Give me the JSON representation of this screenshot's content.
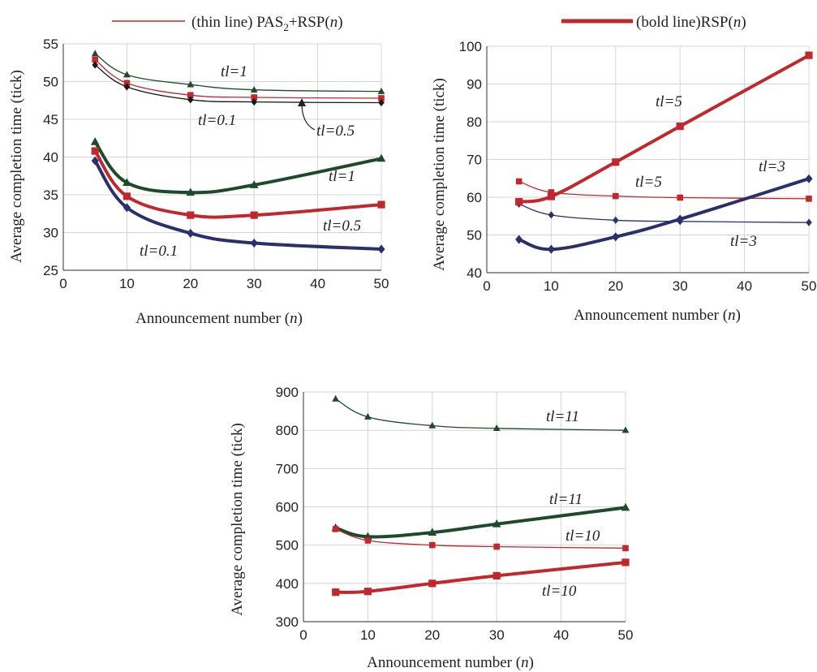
{
  "legend": [
    {
      "label": "(thin line) PAS",
      "sub": "2",
      "rest": "+RSP(",
      "arg": "n",
      "close": ")",
      "color": "#c0282d",
      "width": "thin"
    },
    {
      "label": "(bold line)RSP(",
      "arg": "n",
      "close": ")",
      "color": "#c0282d",
      "width": "bold"
    }
  ],
  "colors": {
    "red": "#c0282d",
    "green": "#1e4a2c",
    "navy": "#2b2f6a",
    "black": "#1a1a1a",
    "grid": "#d4d4d4"
  },
  "chart_data": [
    {
      "type": "line",
      "xlabel": "Announcement number",
      "xlabel_var": "n",
      "ylabel": "Average completion time (tick)",
      "xlim": [
        0,
        50
      ],
      "xticks": [
        0,
        10,
        20,
        30,
        40,
        50
      ],
      "ylim": [
        25,
        55
      ],
      "yticks": [
        25,
        30,
        35,
        40,
        45,
        50,
        55
      ],
      "grid": true,
      "series": [
        {
          "style": "thin",
          "color": "#1e4a2c",
          "marker": "triangle",
          "x": [
            5,
            10,
            20,
            30,
            50
          ],
          "y": [
            53.7,
            50.9,
            49.6,
            48.9,
            48.7
          ]
        },
        {
          "style": "thin",
          "color": "#c0282d",
          "marker": "square",
          "x": [
            5,
            10,
            20,
            30,
            50
          ],
          "y": [
            52.9,
            49.8,
            48.2,
            47.9,
            47.8
          ]
        },
        {
          "style": "thin",
          "color": "#1a1a1a",
          "marker": "diamond",
          "x": [
            5,
            10,
            20,
            30,
            50
          ],
          "y": [
            52.2,
            49.3,
            47.6,
            47.3,
            47.2
          ]
        },
        {
          "style": "bold",
          "color": "#1e4a2c",
          "marker": "triangle",
          "x": [
            5,
            10,
            20,
            30,
            50
          ],
          "y": [
            42.0,
            36.6,
            35.3,
            36.3,
            39.8
          ]
        },
        {
          "style": "bold",
          "color": "#c0282d",
          "marker": "square",
          "x": [
            5,
            10,
            20,
            30,
            50
          ],
          "y": [
            40.8,
            34.8,
            32.3,
            32.3,
            33.7
          ]
        },
        {
          "style": "bold",
          "color": "#2b2f6a",
          "marker": "diamond",
          "x": [
            5,
            10,
            20,
            30,
            50
          ],
          "y": [
            39.5,
            33.3,
            29.9,
            28.6,
            27.8
          ]
        }
      ],
      "annotations": [
        "tl=1",
        "tl=0.1",
        "tl=0.5",
        "tl=1",
        "tl=0.5",
        "tl=0.1"
      ]
    },
    {
      "type": "line",
      "xlabel": "Announcement number",
      "xlabel_var": "n",
      "ylabel": "Average completion time (tick)",
      "xlim": [
        0,
        50
      ],
      "xticks": [
        0,
        10,
        20,
        30,
        40,
        50
      ],
      "ylim": [
        40,
        100
      ],
      "yticks": [
        40,
        50,
        60,
        70,
        80,
        90,
        100
      ],
      "grid": true,
      "series": [
        {
          "style": "thin",
          "color": "#c0282d",
          "marker": "square",
          "x": [
            5,
            10,
            20,
            30,
            50
          ],
          "y": [
            64.2,
            61.3,
            60.3,
            59.9,
            59.6
          ]
        },
        {
          "style": "thin",
          "color": "#2b2f6a",
          "marker": "diamond",
          "x": [
            5,
            10,
            20,
            30,
            50
          ],
          "y": [
            58.2,
            55.3,
            53.9,
            53.6,
            53.3
          ]
        },
        {
          "style": "bold",
          "color": "#c0282d",
          "marker": "square",
          "x": [
            5,
            10,
            20,
            30,
            50
          ],
          "y": [
            58.8,
            60.2,
            69.3,
            78.8,
            97.6
          ]
        },
        {
          "style": "bold",
          "color": "#2b2f6a",
          "marker": "diamond",
          "x": [
            5,
            10,
            20,
            30,
            50
          ],
          "y": [
            48.8,
            46.2,
            49.5,
            54.2,
            64.9
          ]
        }
      ],
      "annotations": [
        "tl=5",
        "tl=5",
        "tl=3",
        "tl=3"
      ]
    },
    {
      "type": "line",
      "xlabel": "Announcement number",
      "xlabel_var": "n",
      "ylabel": "Average completion time (tick)",
      "xlim": [
        0,
        50
      ],
      "xticks": [
        0,
        10,
        20,
        30,
        40,
        50
      ],
      "ylim": [
        300,
        900
      ],
      "yticks": [
        300,
        400,
        500,
        600,
        700,
        800,
        900
      ],
      "grid": true,
      "series": [
        {
          "style": "thin",
          "color": "#1e4a2c",
          "marker": "triangle",
          "x": [
            5,
            10,
            20,
            30,
            50
          ],
          "y": [
            882,
            835,
            812,
            805,
            800
          ]
        },
        {
          "style": "bold",
          "color": "#1e4a2c",
          "marker": "triangle",
          "x": [
            5,
            10,
            20,
            30,
            50
          ],
          "y": [
            545,
            522,
            533,
            555,
            598
          ]
        },
        {
          "style": "thin",
          "color": "#c0282d",
          "marker": "square",
          "x": [
            5,
            10,
            20,
            30,
            50
          ],
          "y": [
            542,
            512,
            500,
            496,
            492
          ]
        },
        {
          "style": "bold",
          "color": "#c0282d",
          "marker": "square",
          "x": [
            5,
            10,
            20,
            30,
            50
          ],
          "y": [
            377,
            379,
            400,
            420,
            455
          ]
        }
      ],
      "annotations": [
        "tl=11",
        "tl=11",
        "tl=10",
        "tl=10"
      ]
    }
  ]
}
